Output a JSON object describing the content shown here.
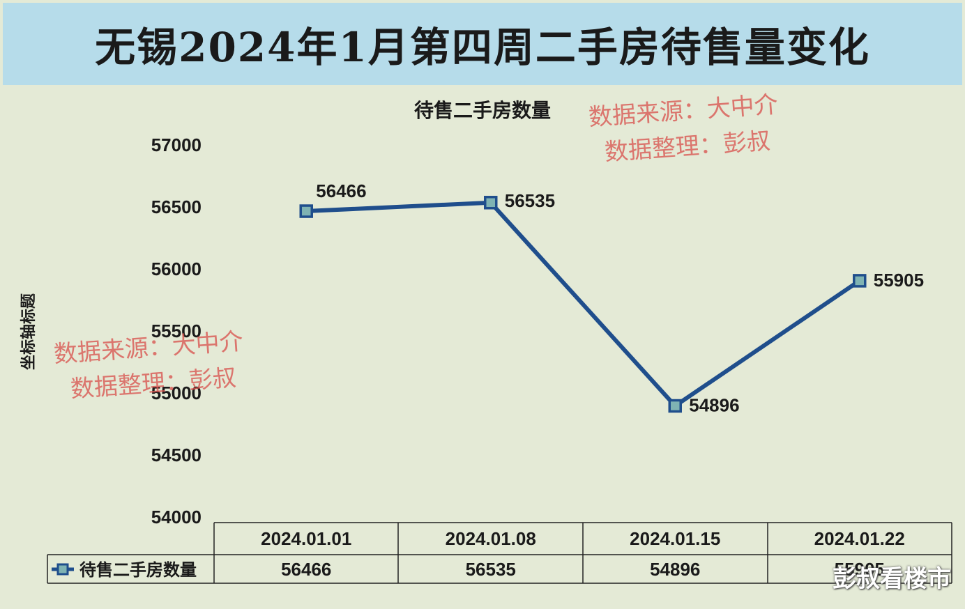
{
  "page_title": "无锡2024年1月第四周二手房待售量变化",
  "watermark_lines": [
    "数据来源：大中介",
    "数据整理：彭叔"
  ],
  "brand": "彭叔看楼市",
  "colors": {
    "series": "#1f4e8c",
    "marker_fill": "#7fb3b3",
    "title_bg": "#b6dcea",
    "plot_bg": "#e4ead6",
    "watermark": "#d9534f"
  },
  "chart_data": {
    "type": "line",
    "title": "待售二手房数量",
    "ylabel": "坐标轴标题",
    "xlabel": "",
    "categories": [
      "2024.01.01",
      "2024.01.08",
      "2024.01.15",
      "2024.01.22"
    ],
    "series": [
      {
        "name": "待售二手房数量",
        "values": [
          56466,
          56535,
          54896,
          55905
        ]
      }
    ],
    "ylim": [
      54000,
      57000
    ],
    "yticks": [
      54000,
      54500,
      55000,
      55500,
      56000,
      56500,
      57000
    ],
    "data_labels": [
      "56466",
      "56535",
      "54896",
      "55905"
    ],
    "grid": false,
    "legend": "data-table"
  }
}
